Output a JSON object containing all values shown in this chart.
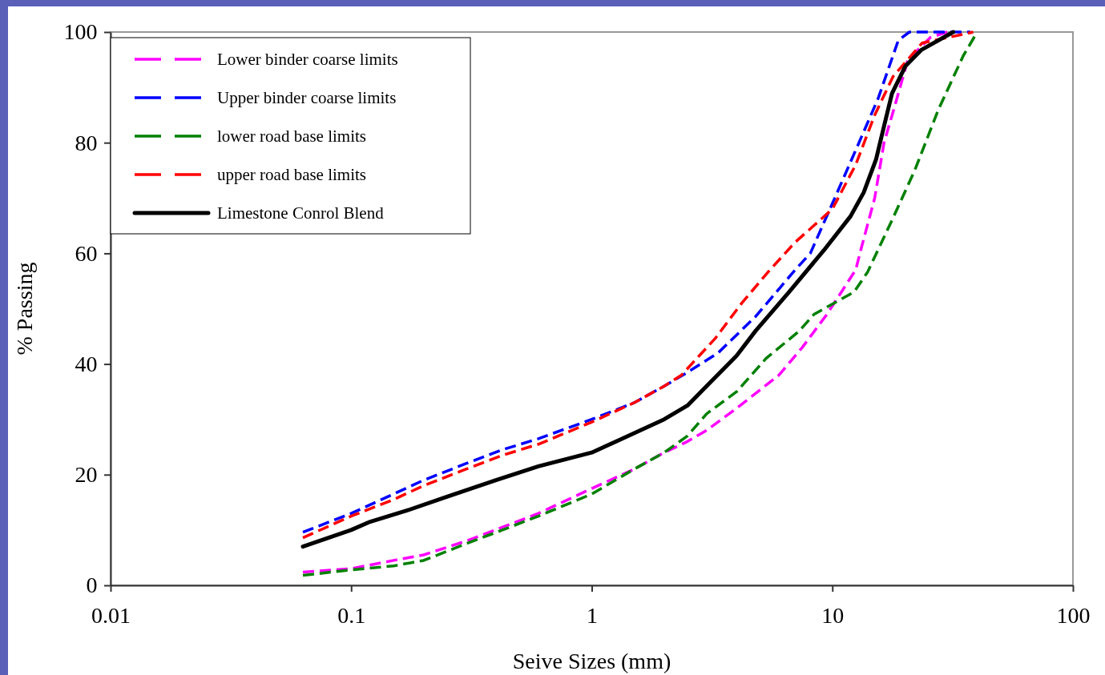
{
  "chart_data": {
    "type": "line",
    "xlabel": "Seive Sizes (mm)",
    "ylabel": "% Passing",
    "log": "x",
    "xlim": [
      0.01,
      100
    ],
    "xticks": [
      0.01,
      0.1,
      1,
      10,
      100
    ],
    "ylim": [
      0,
      100
    ],
    "yticks": [
      0,
      20,
      40,
      60,
      80,
      100
    ],
    "legend": "top left",
    "grid": false,
    "series": [
      {
        "name": "Lower binder coarse limits",
        "color": "#ff00ff",
        "line_style": "dashed",
        "x": [
          0.063,
          0.1,
          0.15,
          0.2,
          0.3,
          0.425,
          0.6,
          1,
          1.5,
          2,
          2.5,
          3,
          4,
          6,
          7.5,
          9.5,
          12.5,
          13.2,
          15,
          16.4,
          18,
          20.6,
          25.5,
          30
        ],
        "values": [
          2.4,
          3,
          4.5,
          5.5,
          8,
          10.5,
          13,
          17.5,
          21,
          24,
          26,
          28,
          32,
          38,
          43,
          49,
          57,
          61,
          70,
          80,
          86,
          95,
          99,
          100
        ]
      },
      {
        "name": "Upper binder coarse limits",
        "color": "#0000ff",
        "line_style": "dashed",
        "x": [
          0.063,
          0.1,
          0.15,
          0.2,
          0.3,
          0.425,
          0.6,
          1,
          1.5,
          2,
          2.5,
          3.35,
          4.8,
          7,
          8.1,
          10,
          12.9,
          15.5,
          18.8,
          20.9,
          37.5
        ],
        "values": [
          9.6,
          13,
          16.5,
          19,
          22,
          24.5,
          26.5,
          30,
          33,
          36,
          38.5,
          42,
          48.6,
          57,
          60,
          69,
          80,
          88,
          98.5,
          100,
          100
        ]
      },
      {
        "name": "lower road base limits",
        "color": "#008000",
        "line_style": "dashed",
        "x": [
          0.063,
          0.1,
          0.15,
          0.2,
          0.3,
          0.425,
          0.6,
          1,
          1.5,
          2,
          2.5,
          3,
          4,
          5.3,
          7.3,
          8.4,
          12.3,
          14,
          17.7,
          22,
          27.6,
          35,
          40
        ],
        "values": [
          1.8,
          2.8,
          3.5,
          4.5,
          7.5,
          10,
          12.5,
          16.5,
          21,
          24,
          27,
          31,
          35,
          41,
          46,
          49,
          53,
          56.6,
          66,
          75,
          86,
          95.7,
          100
        ]
      },
      {
        "name": "upper road base limits",
        "color": "#ff0000",
        "line_style": "dashed",
        "x": [
          0.063,
          0.1,
          0.15,
          0.2,
          0.3,
          0.425,
          0.6,
          1,
          1.5,
          2,
          2.36,
          3.27,
          4.2,
          5.4,
          7,
          10,
          12.5,
          15,
          17.9,
          23.6,
          38.5
        ],
        "values": [
          8.6,
          12.5,
          15.5,
          18,
          21,
          23.5,
          25.5,
          29.5,
          33,
          36,
          38,
          44.7,
          51,
          56.6,
          62,
          68,
          76,
          85,
          92,
          98,
          100
        ]
      },
      {
        "name": "Limestone Conrol Blend",
        "color": "#000000",
        "line_style": "solid",
        "x": [
          0.063,
          0.1,
          0.12,
          0.17,
          0.25,
          0.4,
          0.6,
          1,
          1.5,
          2,
          2.5,
          3,
          4,
          4.8,
          6.6,
          9.2,
          11.9,
          13.5,
          15.2,
          16.4,
          17.7,
          20.1,
          23.5,
          31.8
        ],
        "values": [
          7,
          10,
          11.5,
          13.5,
          16,
          19,
          21.5,
          24,
          27.5,
          30,
          32.5,
          36,
          41.5,
          46,
          53,
          60.5,
          66.7,
          71,
          77,
          83,
          88.9,
          93.8,
          96.8,
          100
        ]
      }
    ]
  }
}
